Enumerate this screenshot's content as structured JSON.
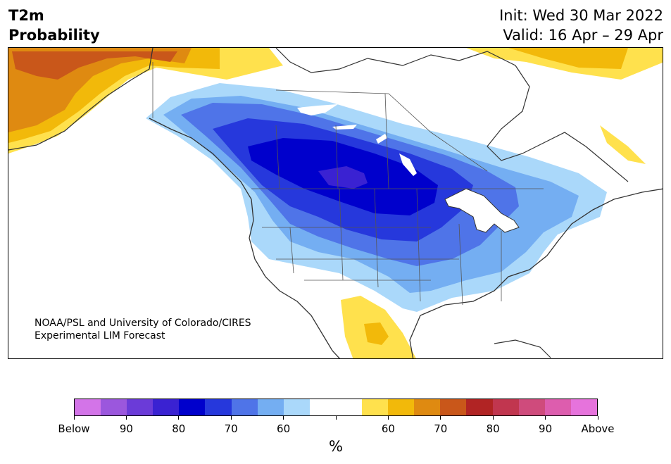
{
  "title": {
    "left_line1": "T2m",
    "left_line2": "Probability",
    "right_line1": "Init: Wed 30 Mar 2022",
    "right_line2": "Valid: 16 Apr – 29 Apr"
  },
  "credit": {
    "line1": "NOAA/PSL and University of Colorado/CIRES",
    "line2": "Experimental LIM Forecast"
  },
  "colorbar": {
    "colors": [
      "#d374e8",
      "#9b57dd",
      "#6b3bd8",
      "#3a22d2",
      "#0000cc",
      "#2638dc",
      "#4f74e8",
      "#74aef2",
      "#aad8fa",
      "#ffffff",
      "#ffffff",
      "#ffe14d",
      "#f2b90a",
      "#df8a11",
      "#c9571a",
      "#b12424",
      "#c1364f",
      "#cf4b7c",
      "#dd5dae",
      "#e673dc"
    ],
    "labels": [
      "Below",
      "90",
      "80",
      "70",
      "60",
      "",
      "60",
      "70",
      "80",
      "90",
      "Above"
    ],
    "unit": "%"
  },
  "map": {
    "below_colors": [
      "#aad8fa",
      "#74aef2",
      "#4f74e8",
      "#2638dc",
      "#0000cc",
      "#3a22d2"
    ],
    "above_colors": [
      "#ffe14d",
      "#f2b90a",
      "#df8a11",
      "#c9571a"
    ],
    "coastline_color": "#333333",
    "border_color": "#555555"
  }
}
